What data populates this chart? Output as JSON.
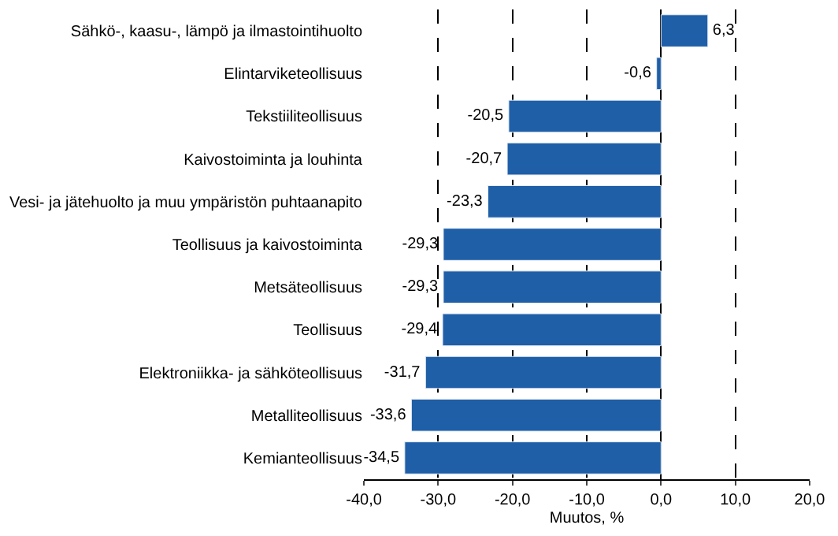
{
  "chart_data": {
    "type": "bar",
    "orientation": "horizontal",
    "xlabel": "Muutos, %",
    "categories": [
      "Sähkö-, kaasu-, lämpö ja ilmastointihuolto",
      "Elintarviketeollisuus",
      "Tekstiiliteollisuus",
      "Kaivostoiminta ja louhinta",
      "Vesi- ja jätehuolto ja muu ympäristön puhtaanapito",
      "Teollisuus ja kaivostoiminta",
      "Metsäteollisuus",
      "Teollisuus",
      "Elektroniikka- ja sähköteollisuus",
      "Metalliteollisuus",
      "Kemianteollisuus"
    ],
    "values": [
      6.3,
      -0.6,
      -20.5,
      -20.7,
      -23.3,
      -29.3,
      -29.3,
      -29.4,
      -31.7,
      -33.6,
      -34.5
    ],
    "value_labels": [
      "6,3",
      "-0,6",
      "-20,5",
      "-20,7",
      "-23,3",
      "-29,3",
      "-29,3",
      "-29,4",
      "-31,7",
      "-33,6",
      "-34,5"
    ],
    "color": "#1f5fa8",
    "xlim": [
      -40,
      20
    ],
    "xticks": [
      {
        "value": -40,
        "label": "-40,0"
      },
      {
        "value": -30,
        "label": "-30,0"
      },
      {
        "value": -20,
        "label": "-20,0"
      },
      {
        "value": -10,
        "label": "-10,0"
      },
      {
        "value": 0,
        "label": "0,0"
      },
      {
        "value": 10,
        "label": "10,0"
      },
      {
        "value": 20,
        "label": "20,0"
      }
    ],
    "grid": "x",
    "legend": false
  }
}
